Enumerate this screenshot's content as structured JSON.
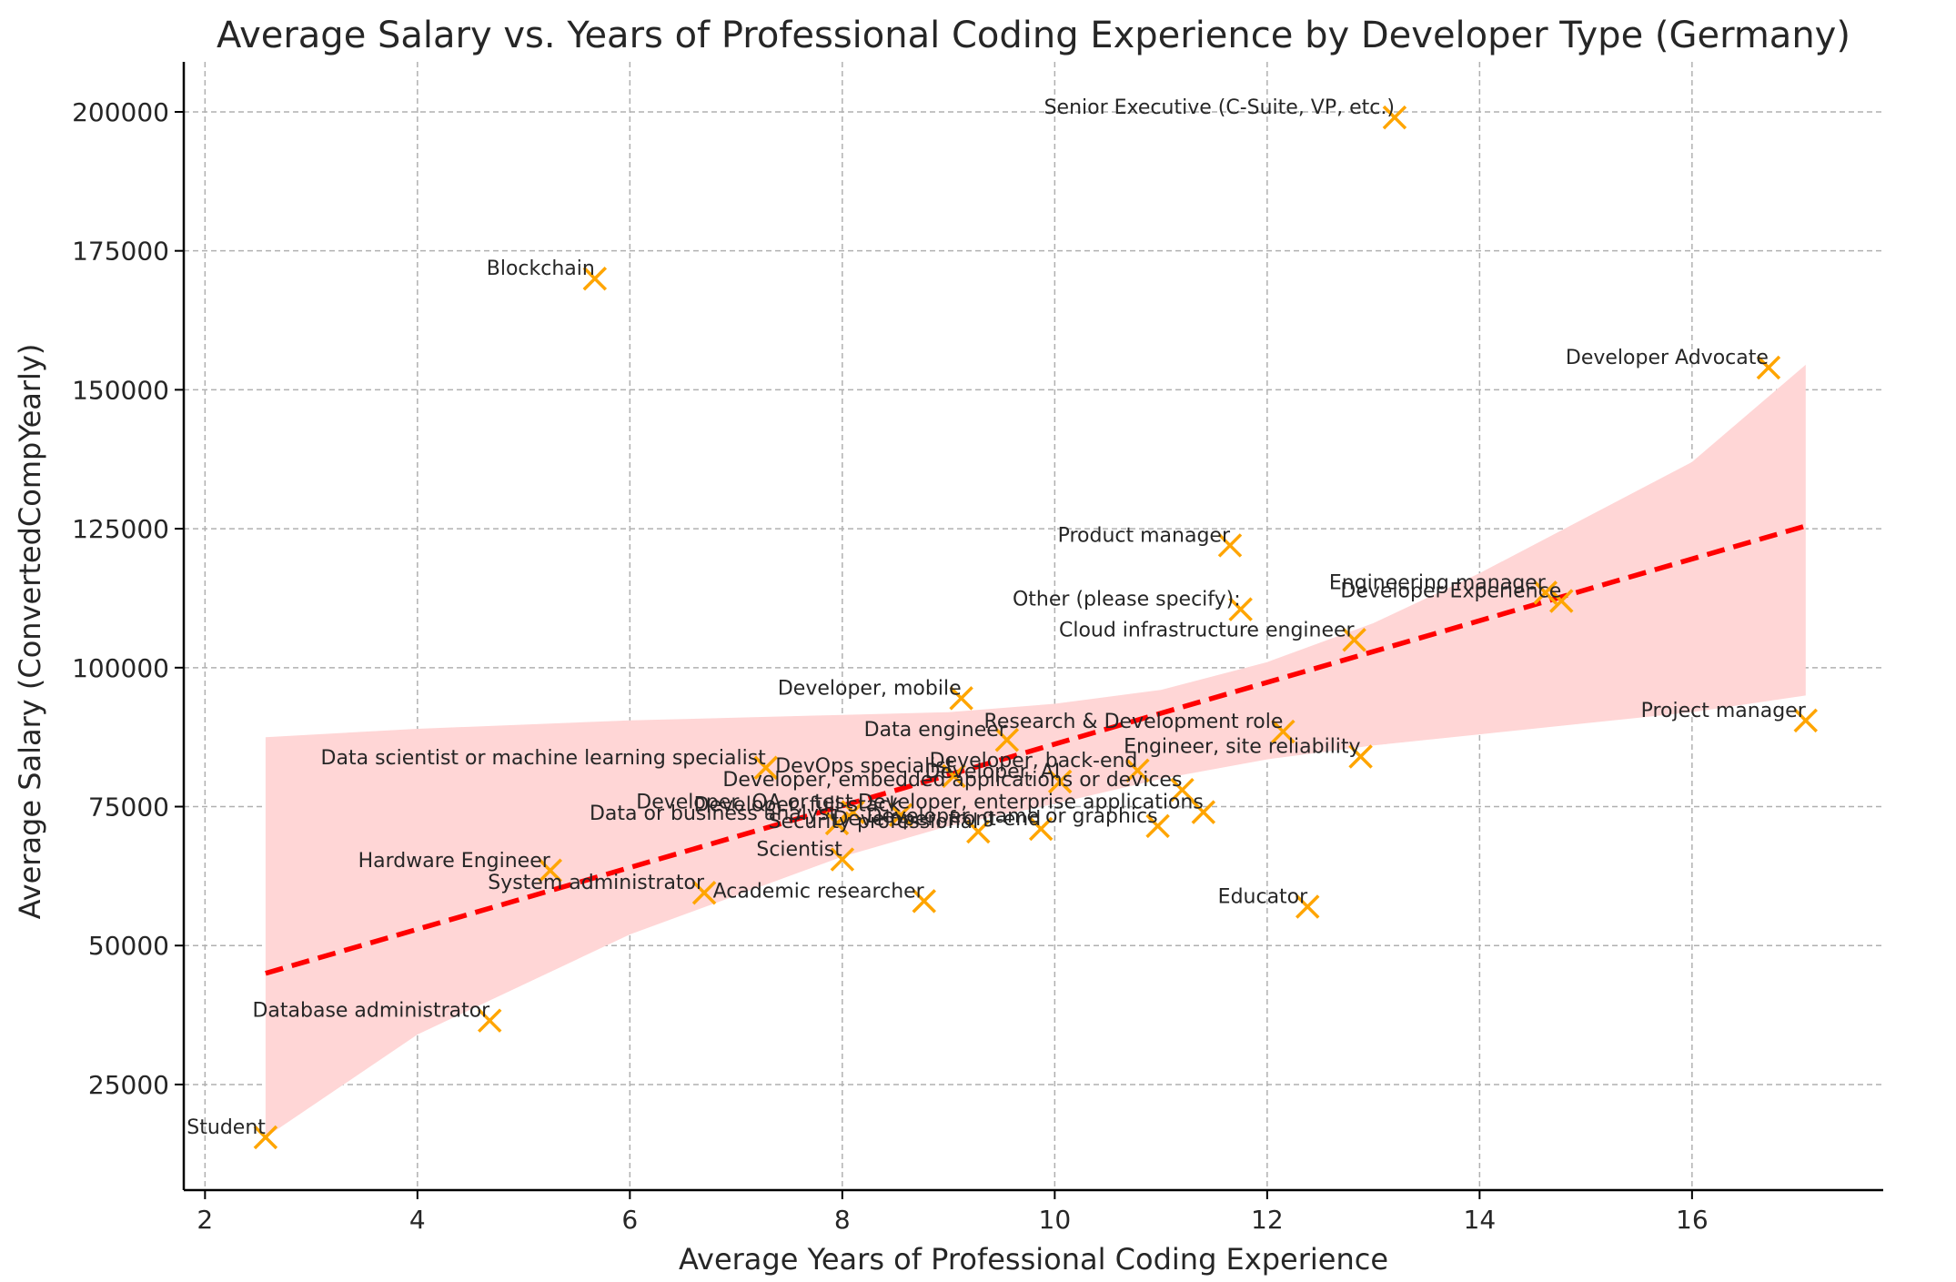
{
  "chart_data": {
    "type": "scatter",
    "title": "Average Salary vs. Years of Professional Coding Experience by Developer Type (Germany)",
    "xlabel": "Average Years of Professional Coding Experience",
    "ylabel": "Average Salary (ConvertedCompYearly)",
    "xlim": [
      1.8,
      17.8
    ],
    "ylim": [
      6000,
      209000
    ],
    "xticks": [
      2,
      4,
      6,
      8,
      10,
      12,
      14,
      16
    ],
    "yticks": [
      25000,
      50000,
      75000,
      100000,
      125000,
      150000,
      175000,
      200000
    ],
    "grid": true,
    "marker": "x",
    "colors": {
      "points": "#FFA500",
      "regression": "#FF0000",
      "band": "#FFD6D6"
    },
    "points": [
      {
        "label": "Senior Executive (C-Suite, VP, etc.)",
        "x": 13.2,
        "y": 199000
      },
      {
        "label": "Blockchain",
        "x": 5.67,
        "y": 170000
      },
      {
        "label": "Developer Advocate",
        "x": 16.72,
        "y": 154000
      },
      {
        "label": "Product manager",
        "x": 11.65,
        "y": 122000
      },
      {
        "label": "Engineering manager",
        "x": 14.62,
        "y": 113500
      },
      {
        "label": "Developer Experience",
        "x": 14.77,
        "y": 112000
      },
      {
        "label": "Other (please specify):",
        "x": 11.75,
        "y": 110500
      },
      {
        "label": "Cloud infrastructure engineer",
        "x": 12.82,
        "y": 105000
      },
      {
        "label": "Developer, mobile",
        "x": 9.12,
        "y": 94500
      },
      {
        "label": "Project manager",
        "x": 17.07,
        "y": 90500
      },
      {
        "label": "Research & Development role",
        "x": 12.15,
        "y": 88500
      },
      {
        "label": "Data engineer",
        "x": 9.55,
        "y": 87000
      },
      {
        "label": "Engineer, site reliability",
        "x": 12.88,
        "y": 84000
      },
      {
        "label": "Data scientist or machine learning specialist",
        "x": 7.28,
        "y": 82000
      },
      {
        "label": "Developer, back-end",
        "x": 10.78,
        "y": 81500
      },
      {
        "label": "DevOps specialist",
        "x": 9.05,
        "y": 80500
      },
      {
        "label": "Developer, AI",
        "x": 10.05,
        "y": 79500
      },
      {
        "label": "Developer, embedded applications or devices",
        "x": 11.2,
        "y": 78000
      },
      {
        "label": "Developer, enterprise applications",
        "x": 11.4,
        "y": 74000
      },
      {
        "label": "Developer, QA or test",
        "x": 8.1,
        "y": 74000
      },
      {
        "label": "Developer, full-stack",
        "x": 8.55,
        "y": 73500
      },
      {
        "label": "Developer, game or graphics",
        "x": 10.97,
        "y": 71500
      },
      {
        "label": "Data or business analyst",
        "x": 7.95,
        "y": 72000
      },
      {
        "label": "Developer, front-end",
        "x": 9.87,
        "y": 71000
      },
      {
        "label": "Security professional",
        "x": 9.28,
        "y": 70500
      },
      {
        "label": "Scientist",
        "x": 8.0,
        "y": 65500
      },
      {
        "label": "Hardware Engineer",
        "x": 5.25,
        "y": 63500
      },
      {
        "label": "System administrator",
        "x": 6.7,
        "y": 59500
      },
      {
        "label": "Academic researcher",
        "x": 8.77,
        "y": 58000
      },
      {
        "label": "Educator",
        "x": 12.38,
        "y": 57000
      },
      {
        "label": "Database administrator",
        "x": 4.68,
        "y": 36500
      },
      {
        "label": "Student",
        "x": 2.57,
        "y": 15500
      }
    ],
    "regression": {
      "x": [
        2.57,
        17.07
      ],
      "y": [
        45000,
        125500
      ]
    },
    "confidence_band": {
      "x": [
        2.57,
        4.0,
        6.0,
        8.0,
        9.0,
        10.0,
        11.0,
        12.0,
        13.0,
        14.0,
        15.0,
        16.0,
        17.07
      ],
      "upper": [
        87500,
        89000,
        90500,
        91500,
        92000,
        93500,
        96000,
        101000,
        108000,
        117000,
        127000,
        137000,
        154500
      ],
      "lower": [
        15500,
        34000,
        52000,
        66000,
        71500,
        75500,
        80000,
        83500,
        86000,
        88000,
        90000,
        92000,
        95000
      ]
    }
  }
}
